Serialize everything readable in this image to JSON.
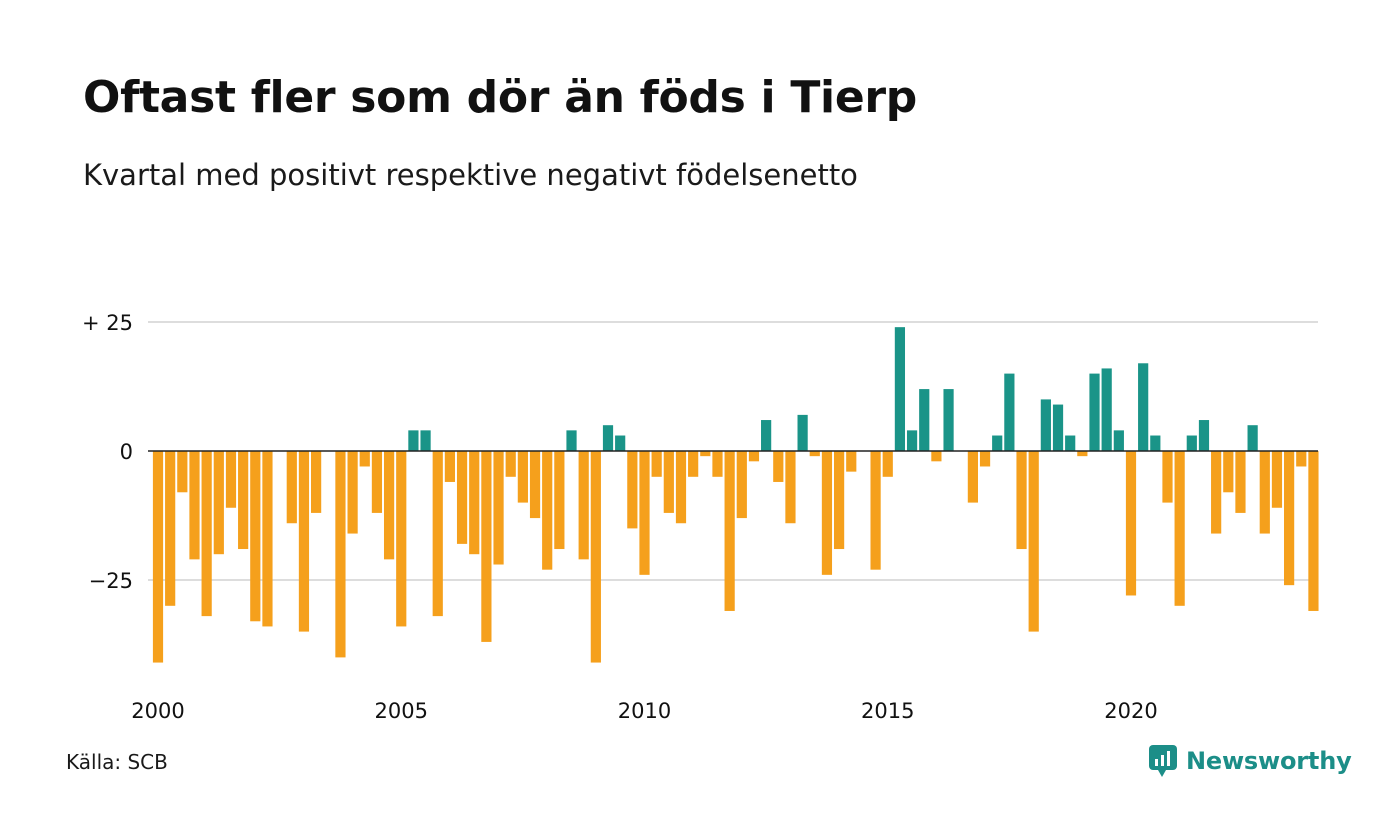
{
  "title": "Oftast fler som dör än föds i Tierp",
  "subtitle": "Kvartal med positivt respektive negativt födelsenetto",
  "source": "Källa: SCB",
  "brand": {
    "name": "Newsworthy",
    "icon": "newsworthy-logo-icon"
  },
  "colors": {
    "positive": "#1a9488",
    "negative": "#f5a01c",
    "grid": "#dddddd",
    "text": "#111111",
    "brand": "#1c8e88"
  },
  "chart_data": {
    "type": "bar",
    "title": "Oftast fler som dör än föds i Tierp",
    "subtitle": "Kvartal med positivt respektive negativt födelsenetto",
    "xlabel": "",
    "ylabel": "",
    "ylim": [
      -43,
      26
    ],
    "grid": true,
    "y_ticks": [
      {
        "value": 25,
        "label": "+ 25"
      },
      {
        "value": 0,
        "label": "0"
      },
      {
        "value": -25,
        "label": "−25"
      }
    ],
    "x_ticks": [
      {
        "value": 2000,
        "label": "2000"
      },
      {
        "value": 2005,
        "label": "2005"
      },
      {
        "value": 2010,
        "label": "2010"
      },
      {
        "value": 2015,
        "label": "2015"
      },
      {
        "value": 2020,
        "label": "2020"
      }
    ],
    "start": "2000 Q1",
    "values": [
      -41,
      -30,
      -8,
      -21,
      -32,
      -20,
      -11,
      -19,
      -33,
      -34,
      0,
      -14,
      -35,
      -12,
      0,
      -40,
      -16,
      -3,
      -12,
      -21,
      -34,
      4,
      4,
      -32,
      -6,
      -18,
      -20,
      -37,
      -22,
      -5,
      -10,
      -13,
      -23,
      -19,
      4,
      -21,
      -41,
      5,
      3,
      -15,
      -24,
      -5,
      -12,
      -14,
      -5,
      -1,
      -5,
      -31,
      -13,
      -2,
      6,
      -6,
      -14,
      7,
      -1,
      -24,
      -19,
      -4,
      0,
      -23,
      -5,
      24,
      4,
      12,
      -2,
      12,
      0,
      -10,
      -3,
      3,
      15,
      -19,
      -35,
      10,
      9,
      3,
      -1,
      15,
      16,
      4,
      -28,
      17,
      3,
      -10,
      -30,
      3,
      6,
      -16,
      -8,
      -12,
      5,
      -16,
      -11,
      -26,
      -3,
      -31
    ]
  }
}
